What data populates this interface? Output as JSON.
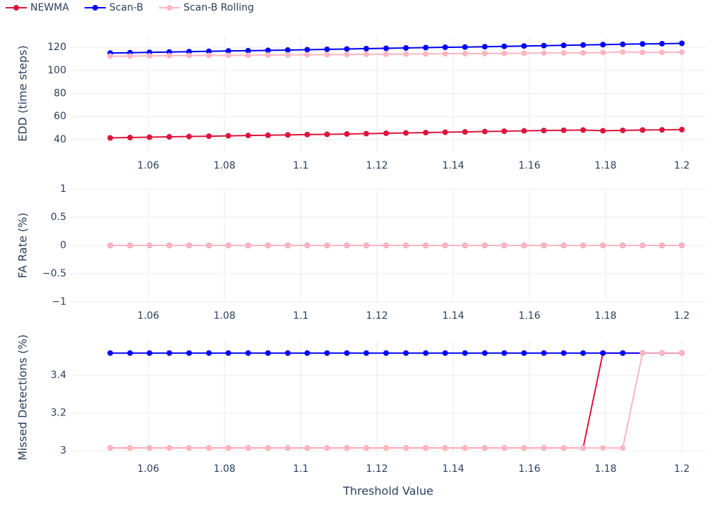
{
  "chart_data": [
    {
      "type": "line",
      "ylabel": "EDD (time steps)",
      "legend": "top-left",
      "x": [
        1.05,
        1.0552,
        1.0603,
        1.0655,
        1.0707,
        1.0759,
        1.081,
        1.0862,
        1.0914,
        1.0966,
        1.1017,
        1.1069,
        1.1121,
        1.1172,
        1.1224,
        1.1276,
        1.1328,
        1.1379,
        1.1431,
        1.1483,
        1.1534,
        1.1586,
        1.1638,
        1.169,
        1.1741,
        1.1793,
        1.1845,
        1.1897,
        1.1948,
        1.2
      ],
      "xlim": [
        1.0396,
        1.2063
      ],
      "xticks": [
        1.06,
        1.08,
        1.1,
        1.12,
        1.14,
        1.16,
        1.18,
        1.2
      ],
      "ylim": [
        29.6,
        130.4
      ],
      "yticks": [
        40,
        60,
        80,
        100,
        120
      ],
      "grid": true,
      "series": [
        {
          "name": "NEWMA",
          "color": "#dc143c",
          "values": [
            41.5,
            41.8,
            42.1,
            42.4,
            42.7,
            43.0,
            43.3,
            43.6,
            43.8,
            44.1,
            44.4,
            44.6,
            44.9,
            45.2,
            45.5,
            45.8,
            46.1,
            46.4,
            46.7,
            47.0,
            47.3,
            47.6,
            47.9,
            48.1,
            48.3,
            47.7,
            48.0,
            48.3,
            48.5,
            48.7
          ]
        },
        {
          "name": "Scan-B",
          "color": "#0000ff",
          "values": [
            115.0,
            115.3,
            115.6,
            115.9,
            116.2,
            116.5,
            116.8,
            117.0,
            117.3,
            117.6,
            117.9,
            118.2,
            118.5,
            118.8,
            119.1,
            119.4,
            119.7,
            120.0,
            120.2,
            120.5,
            120.8,
            121.1,
            121.4,
            121.7,
            122.0,
            122.3,
            122.6,
            122.9,
            123.1,
            123.4
          ]
        },
        {
          "name": "Scan-B Rolling",
          "color": "#ffb6c1",
          "values": [
            112.3,
            112.4,
            112.5,
            112.7,
            112.8,
            112.9,
            113.0,
            113.1,
            113.3,
            113.4,
            113.5,
            113.6,
            113.7,
            113.9,
            114.0,
            114.1,
            114.2,
            114.4,
            114.5,
            114.6,
            114.7,
            114.8,
            115.0,
            115.1,
            115.2,
            115.4,
            115.9,
            115.5,
            115.6,
            115.7
          ]
        }
      ]
    },
    {
      "type": "line",
      "ylabel": "FA Rate (%)",
      "x": [
        1.05,
        1.0552,
        1.0603,
        1.0655,
        1.0707,
        1.0759,
        1.081,
        1.0862,
        1.0914,
        1.0966,
        1.1017,
        1.1069,
        1.1121,
        1.1172,
        1.1224,
        1.1276,
        1.1328,
        1.1379,
        1.1431,
        1.1483,
        1.1534,
        1.1586,
        1.1638,
        1.169,
        1.1741,
        1.1793,
        1.1845,
        1.1897,
        1.1948,
        1.2
      ],
      "xlim": [
        1.0396,
        1.2063
      ],
      "xticks": [
        1.06,
        1.08,
        1.1,
        1.12,
        1.14,
        1.16,
        1.18,
        1.2
      ],
      "ylim": [
        -1,
        1
      ],
      "yticks": [
        {
          "value": -1,
          "label": "−1"
        },
        {
          "value": -0.5,
          "label": "−0.5"
        },
        0,
        0.5,
        1
      ],
      "grid": true,
      "series": [
        {
          "name": "NEWMA",
          "color": "#dc143c",
          "values": [
            0,
            0,
            0,
            0,
            0,
            0,
            0,
            0,
            0,
            0,
            0,
            0,
            0,
            0,
            0,
            0,
            0,
            0,
            0,
            0,
            0,
            0,
            0,
            0,
            0,
            0,
            0,
            0,
            0,
            0
          ]
        },
        {
          "name": "Scan-B",
          "color": "#0000ff",
          "values": [
            0,
            0,
            0,
            0,
            0,
            0,
            0,
            0,
            0,
            0,
            0,
            0,
            0,
            0,
            0,
            0,
            0,
            0,
            0,
            0,
            0,
            0,
            0,
            0,
            0,
            0,
            0,
            0,
            0,
            0
          ]
        },
        {
          "name": "Scan-B Rolling",
          "color": "#ffb6c1",
          "values": [
            0,
            0,
            0,
            0,
            0,
            0,
            0,
            0,
            0,
            0,
            0,
            0,
            0,
            0,
            0,
            0,
            0,
            0,
            0,
            0,
            0,
            0,
            0,
            0,
            0,
            0,
            0,
            0,
            0,
            0
          ]
        }
      ]
    },
    {
      "type": "line",
      "ylabel": "Missed Detections (%)",
      "xlabel": "Threshold Value",
      "x": [
        1.05,
        1.0552,
        1.0603,
        1.0655,
        1.0707,
        1.0759,
        1.081,
        1.0862,
        1.0914,
        1.0966,
        1.1017,
        1.1069,
        1.1121,
        1.1172,
        1.1224,
        1.1276,
        1.1328,
        1.1379,
        1.1431,
        1.1483,
        1.1534,
        1.1586,
        1.1638,
        1.169,
        1.1741,
        1.1793,
        1.1845,
        1.1897,
        1.1948,
        1.2
      ],
      "xlim": [
        1.0396,
        1.2063
      ],
      "xticks": [
        1.06,
        1.08,
        1.1,
        1.12,
        1.14,
        1.16,
        1.18,
        1.2
      ],
      "ylim": [
        2.978,
        3.587
      ],
      "yticks": [
        3,
        3.2,
        3.4
      ],
      "grid": true,
      "series": [
        {
          "name": "NEWMA",
          "color": "#dc143c",
          "values": [
            3.0151,
            3.0151,
            3.0151,
            3.0151,
            3.0151,
            3.0151,
            3.0151,
            3.0151,
            3.0151,
            3.0151,
            3.0151,
            3.0151,
            3.0151,
            3.0151,
            3.0151,
            3.0151,
            3.0151,
            3.0151,
            3.0151,
            3.0151,
            3.0151,
            3.0151,
            3.0151,
            3.0151,
            3.0151,
            3.5176,
            3.5176,
            3.5176,
            3.5176,
            3.5176
          ]
        },
        {
          "name": "Scan-B",
          "color": "#0000ff",
          "values": [
            3.5176,
            3.5176,
            3.5176,
            3.5176,
            3.5176,
            3.5176,
            3.5176,
            3.5176,
            3.5176,
            3.5176,
            3.5176,
            3.5176,
            3.5176,
            3.5176,
            3.5176,
            3.5176,
            3.5176,
            3.5176,
            3.5176,
            3.5176,
            3.5176,
            3.5176,
            3.5176,
            3.5176,
            3.5176,
            3.5176,
            3.5176,
            3.5176,
            3.5176,
            3.5176
          ]
        },
        {
          "name": "Scan-B Rolling",
          "color": "#ffb6c1",
          "values": [
            3.0151,
            3.0151,
            3.0151,
            3.0151,
            3.0151,
            3.0151,
            3.0151,
            3.0151,
            3.0151,
            3.0151,
            3.0151,
            3.0151,
            3.0151,
            3.0151,
            3.0151,
            3.0151,
            3.0151,
            3.0151,
            3.0151,
            3.0151,
            3.0151,
            3.0151,
            3.0151,
            3.0151,
            3.0151,
            3.0151,
            3.0151,
            3.5176,
            3.5176,
            3.5176
          ]
        }
      ]
    }
  ]
}
